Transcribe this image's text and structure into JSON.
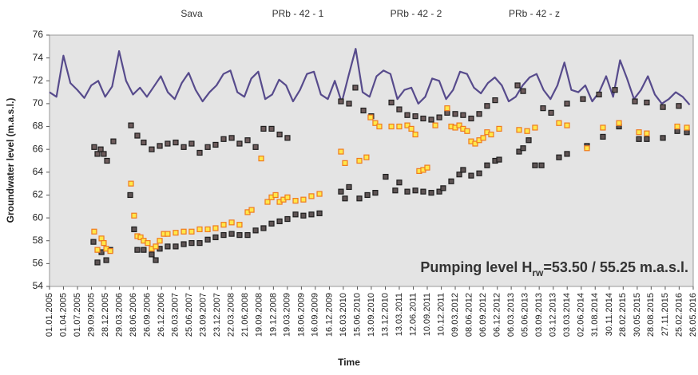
{
  "chart_data": {
    "type": "line",
    "xlabel": "Time",
    "ylabel": "Groundwater level (m.a.s.l.)",
    "annotation": [
      "Pumping level H",
      "rw",
      "=53.50 / 55.25 m.a.s.l."
    ],
    "xlim": [
      38353,
      42516
    ],
    "ylim": [
      54,
      76
    ],
    "yticks": [
      54,
      56,
      58,
      60,
      62,
      64,
      66,
      68,
      70,
      72,
      74,
      76
    ],
    "xticks": [
      {
        "value": 38353,
        "label": "01.01.2005"
      },
      {
        "value": 38443,
        "label": "01.04.2005"
      },
      {
        "value": 38534,
        "label": "01.07.2005"
      },
      {
        "value": 38624,
        "label": "29.09.2005"
      },
      {
        "value": 38714,
        "label": "28.12.2005"
      },
      {
        "value": 38805,
        "label": "29.03.2006"
      },
      {
        "value": 38896,
        "label": "28.06.2006"
      },
      {
        "value": 38986,
        "label": "26.09.2006"
      },
      {
        "value": 39077,
        "label": "26.12.2006"
      },
      {
        "value": 39167,
        "label": "26.03.2007"
      },
      {
        "value": 39258,
        "label": "25.06.2007"
      },
      {
        "value": 39348,
        "label": "23.09.2007"
      },
      {
        "value": 39439,
        "label": "23.12.2007"
      },
      {
        "value": 39529,
        "label": "22.03.2008"
      },
      {
        "value": 39620,
        "label": "21.06.2008"
      },
      {
        "value": 39710,
        "label": "19.09.2008"
      },
      {
        "value": 39801,
        "label": "19.12.2008"
      },
      {
        "value": 39891,
        "label": "19.03.2009"
      },
      {
        "value": 39982,
        "label": "18.06.2009"
      },
      {
        "value": 40072,
        "label": "16.09.2009"
      },
      {
        "value": 40163,
        "label": "16.12.2009"
      },
      {
        "value": 40253,
        "label": "16.03.2010"
      },
      {
        "value": 40344,
        "label": "15.06.2010"
      },
      {
        "value": 40434,
        "label": "13.09.2010"
      },
      {
        "value": 40525,
        "label": "13.12.2010"
      },
      {
        "value": 40615,
        "label": "13.03.2011"
      },
      {
        "value": 40706,
        "label": "12.06.2011"
      },
      {
        "value": 40796,
        "label": "10.09.2011"
      },
      {
        "value": 40887,
        "label": "10.12.2011"
      },
      {
        "value": 40977,
        "label": "09.03.2012"
      },
      {
        "value": 41068,
        "label": "08.06.2012"
      },
      {
        "value": 41158,
        "label": "06.09.2012"
      },
      {
        "value": 41249,
        "label": "06.12.2012"
      },
      {
        "value": 41339,
        "label": "06.03.2013"
      },
      {
        "value": 41430,
        "label": "05.06.2013"
      },
      {
        "value": 41520,
        "label": "03.09.2013"
      },
      {
        "value": 41611,
        "label": "03.12.2013"
      },
      {
        "value": 41701,
        "label": "03.03.2014"
      },
      {
        "value": 41792,
        "label": "02.06.2014"
      },
      {
        "value": 41882,
        "label": "31.08.2014"
      },
      {
        "value": 41973,
        "label": "30.11.2014"
      },
      {
        "value": 42063,
        "label": "28.02.2015"
      },
      {
        "value": 42154,
        "label": "30.05.2015"
      },
      {
        "value": 42244,
        "label": "28.08.2015"
      },
      {
        "value": 42335,
        "label": "27.11.2015"
      },
      {
        "value": 42425,
        "label": "25.02.2016"
      },
      {
        "value": 42516,
        "label": "26.05.2016"
      }
    ],
    "grid": false,
    "background": "#e4e4e4",
    "series": [
      {
        "name": "Sava",
        "type": "line",
        "color": "#574b8c",
        "x": [
          38353,
          38398,
          38443,
          38488,
          38533,
          38578,
          38623,
          38668,
          38713,
          38758,
          38803,
          38848,
          38893,
          38938,
          38983,
          39028,
          39073,
          39118,
          39163,
          39208,
          39253,
          39298,
          39343,
          39388,
          39433,
          39478,
          39523,
          39568,
          39613,
          39658,
          39703,
          39748,
          39793,
          39838,
          39883,
          39928,
          39973,
          40018,
          40063,
          40108,
          40153,
          40198,
          40243,
          40288,
          40333,
          40378,
          40423,
          40468,
          40513,
          40558,
          40603,
          40648,
          40693,
          40738,
          40783,
          40828,
          40873,
          40918,
          40963,
          41008,
          41053,
          41098,
          41143,
          41188,
          41233,
          41278,
          41323,
          41368,
          41413,
          41458,
          41503,
          41548,
          41593,
          41638,
          41683,
          41728,
          41773,
          41818,
          41863,
          41908,
          41953,
          41998,
          42043,
          42088,
          42133,
          42178,
          42223,
          42268,
          42313,
          42358,
          42403,
          42448,
          42493
        ],
        "values": [
          71.0,
          70.6,
          74.2,
          71.8,
          71.2,
          70.5,
          71.6,
          72.0,
          70.6,
          71.5,
          74.6,
          72.0,
          70.8,
          71.4,
          70.6,
          71.5,
          72.4,
          71.0,
          70.4,
          71.8,
          72.7,
          71.2,
          70.2,
          71.0,
          71.6,
          72.6,
          72.9,
          71.0,
          70.6,
          72.2,
          72.8,
          70.4,
          70.8,
          72.1,
          71.6,
          70.2,
          71.2,
          72.6,
          72.8,
          70.8,
          70.4,
          72.0,
          70.1,
          72.5,
          74.8,
          71.0,
          70.6,
          72.4,
          72.9,
          72.6,
          70.4,
          71.2,
          71.4,
          70.0,
          70.6,
          72.2,
          72.0,
          70.4,
          71.2,
          72.8,
          72.6,
          71.4,
          70.9,
          71.8,
          72.3,
          71.6,
          70.2,
          70.6,
          71.6,
          72.3,
          72.6,
          71.2,
          70.4,
          71.6,
          73.6,
          71.2,
          71.0,
          71.6,
          70.2,
          71.0,
          72.4,
          70.6,
          73.8,
          72.2,
          70.4,
          71.2,
          72.4,
          70.8,
          70.0,
          70.4,
          71.0,
          70.6,
          69.9
        ]
      },
      {
        "name": "PRb - 42 - 1",
        "type": "scatter",
        "color": "#6e5c5c",
        "edgecolor": "#1e1e1e",
        "x": [
          38642,
          38663,
          38684,
          38704,
          38725,
          38766,
          38880,
          38921,
          38962,
          39014,
          39066,
          39117,
          39169,
          39221,
          39272,
          39324,
          39376,
          39427,
          39479,
          39531,
          39582,
          39634,
          39686,
          39737,
          39789,
          39841,
          39892,
          40238,
          40290,
          40331,
          40383,
          40434,
          40564,
          40615,
          40667,
          40719,
          40770,
          40822,
          40874,
          40925,
          40977,
          41028,
          41080,
          41132,
          41183,
          41235,
          41380,
          41416,
          41545,
          41597,
          41700,
          41803,
          41907,
          42010,
          42139,
          42216,
          42320,
          42423
        ],
        "values": [
          66.2,
          65.6,
          66.0,
          65.6,
          65.0,
          66.7,
          68.1,
          67.2,
          66.6,
          66.0,
          66.3,
          66.5,
          66.6,
          66.2,
          66.5,
          65.7,
          66.2,
          66.4,
          66.9,
          67.0,
          66.5,
          66.8,
          66.2,
          67.8,
          67.8,
          67.3,
          67.0,
          70.2,
          70.0,
          71.4,
          69.4,
          68.9,
          70.1,
          69.5,
          69.0,
          68.9,
          68.7,
          68.6,
          68.8,
          69.2,
          69.1,
          69.0,
          68.7,
          69.1,
          69.8,
          70.3,
          71.6,
          71.1,
          69.6,
          69.2,
          70.0,
          70.4,
          70.8,
          71.2,
          70.2,
          70.1,
          69.7,
          69.8
        ]
      },
      {
        "name": "PRb - 42 - 2",
        "type": "scatter",
        "color": "#5e5454",
        "edgecolor": "#1e1e1e",
        "x": [
          38637,
          38663,
          38689,
          38720,
          38746,
          38875,
          38900,
          38921,
          38962,
          39014,
          39040,
          39066,
          39117,
          39169,
          39221,
          39272,
          39324,
          39376,
          39427,
          39479,
          39531,
          39582,
          39634,
          39686,
          39737,
          39789,
          39841,
          39892,
          39944,
          39995,
          40047,
          40099,
          40238,
          40264,
          40290,
          40357,
          40409,
          40460,
          40527,
          40589,
          40615,
          40667,
          40719,
          40770,
          40822,
          40874,
          40899,
          40951,
          41003,
          41028,
          41080,
          41132,
          41183,
          41235,
          41261,
          41390,
          41416,
          41452,
          41493,
          41535,
          41648,
          41700,
          41829,
          41932,
          42036,
          42165,
          42216,
          42320,
          42413,
          42475
        ],
        "values": [
          57.9,
          56.1,
          57.0,
          56.3,
          57.2,
          62.0,
          59.0,
          57.2,
          57.2,
          56.8,
          56.3,
          57.3,
          57.5,
          57.5,
          57.7,
          57.8,
          57.8,
          58.1,
          58.3,
          58.5,
          58.6,
          58.5,
          58.5,
          58.9,
          59.1,
          59.5,
          59.7,
          59.9,
          60.3,
          60.2,
          60.3,
          60.4,
          62.3,
          61.7,
          62.7,
          61.7,
          62.0,
          62.2,
          63.6,
          62.4,
          63.1,
          62.3,
          62.4,
          62.3,
          62.2,
          62.3,
          62.6,
          63.2,
          63.8,
          64.2,
          63.7,
          63.9,
          64.6,
          65.0,
          65.1,
          65.8,
          66.1,
          66.8,
          64.6,
          64.6,
          65.3,
          65.6,
          66.3,
          67.1,
          68.0,
          66.9,
          66.9,
          67.0,
          67.6,
          67.5
        ]
      },
      {
        "name": "PRb - 42 - z",
        "type": "scatter",
        "color": "#ffe84a",
        "edgecolor": "#f07a1e",
        "x": [
          38642,
          38663,
          38689,
          38704,
          38720,
          38746,
          38880,
          38900,
          38921,
          38942,
          38962,
          38988,
          39014,
          39040,
          39066,
          39092,
          39117,
          39169,
          39221,
          39272,
          39324,
          39376,
          39427,
          39479,
          39531,
          39582,
          39634,
          39660,
          39722,
          39763,
          39789,
          39815,
          39841,
          39866,
          39892,
          39944,
          39995,
          40047,
          40099,
          40238,
          40264,
          40357,
          40403,
          40429,
          40460,
          40486,
          40564,
          40615,
          40667,
          40693,
          40719,
          40744,
          40770,
          40796,
          40848,
          40925,
          40951,
          40977,
          41003,
          41028,
          41054,
          41080,
          41106,
          41132,
          41158,
          41183,
          41209,
          41261,
          41390,
          41442,
          41493,
          41648,
          41700,
          41829,
          41932,
          42036,
          42165,
          42216,
          42413,
          42475
        ],
        "values": [
          58.8,
          57.2,
          58.2,
          57.8,
          57.3,
          57.1,
          63.0,
          60.2,
          58.4,
          58.3,
          58.0,
          57.8,
          57.3,
          57.5,
          58.0,
          58.6,
          58.6,
          58.7,
          58.8,
          58.8,
          59.0,
          59.0,
          59.1,
          59.4,
          59.6,
          59.4,
          60.5,
          60.7,
          65.2,
          61.4,
          61.8,
          62.0,
          61.4,
          61.6,
          61.8,
          61.5,
          61.6,
          61.9,
          62.1,
          65.8,
          64.8,
          65.0,
          65.3,
          68.8,
          68.3,
          68.0,
          68.0,
          68.0,
          68.1,
          67.8,
          67.3,
          64.1,
          64.2,
          64.4,
          68.1,
          69.6,
          68.0,
          67.9,
          68.1,
          67.8,
          67.6,
          66.7,
          66.5,
          66.8,
          67.0,
          67.5,
          67.3,
          67.8,
          67.7,
          67.6,
          67.9,
          68.3,
          68.1,
          66.1,
          67.9,
          68.3,
          67.5,
          67.4,
          68.0,
          67.9
        ]
      }
    ]
  }
}
